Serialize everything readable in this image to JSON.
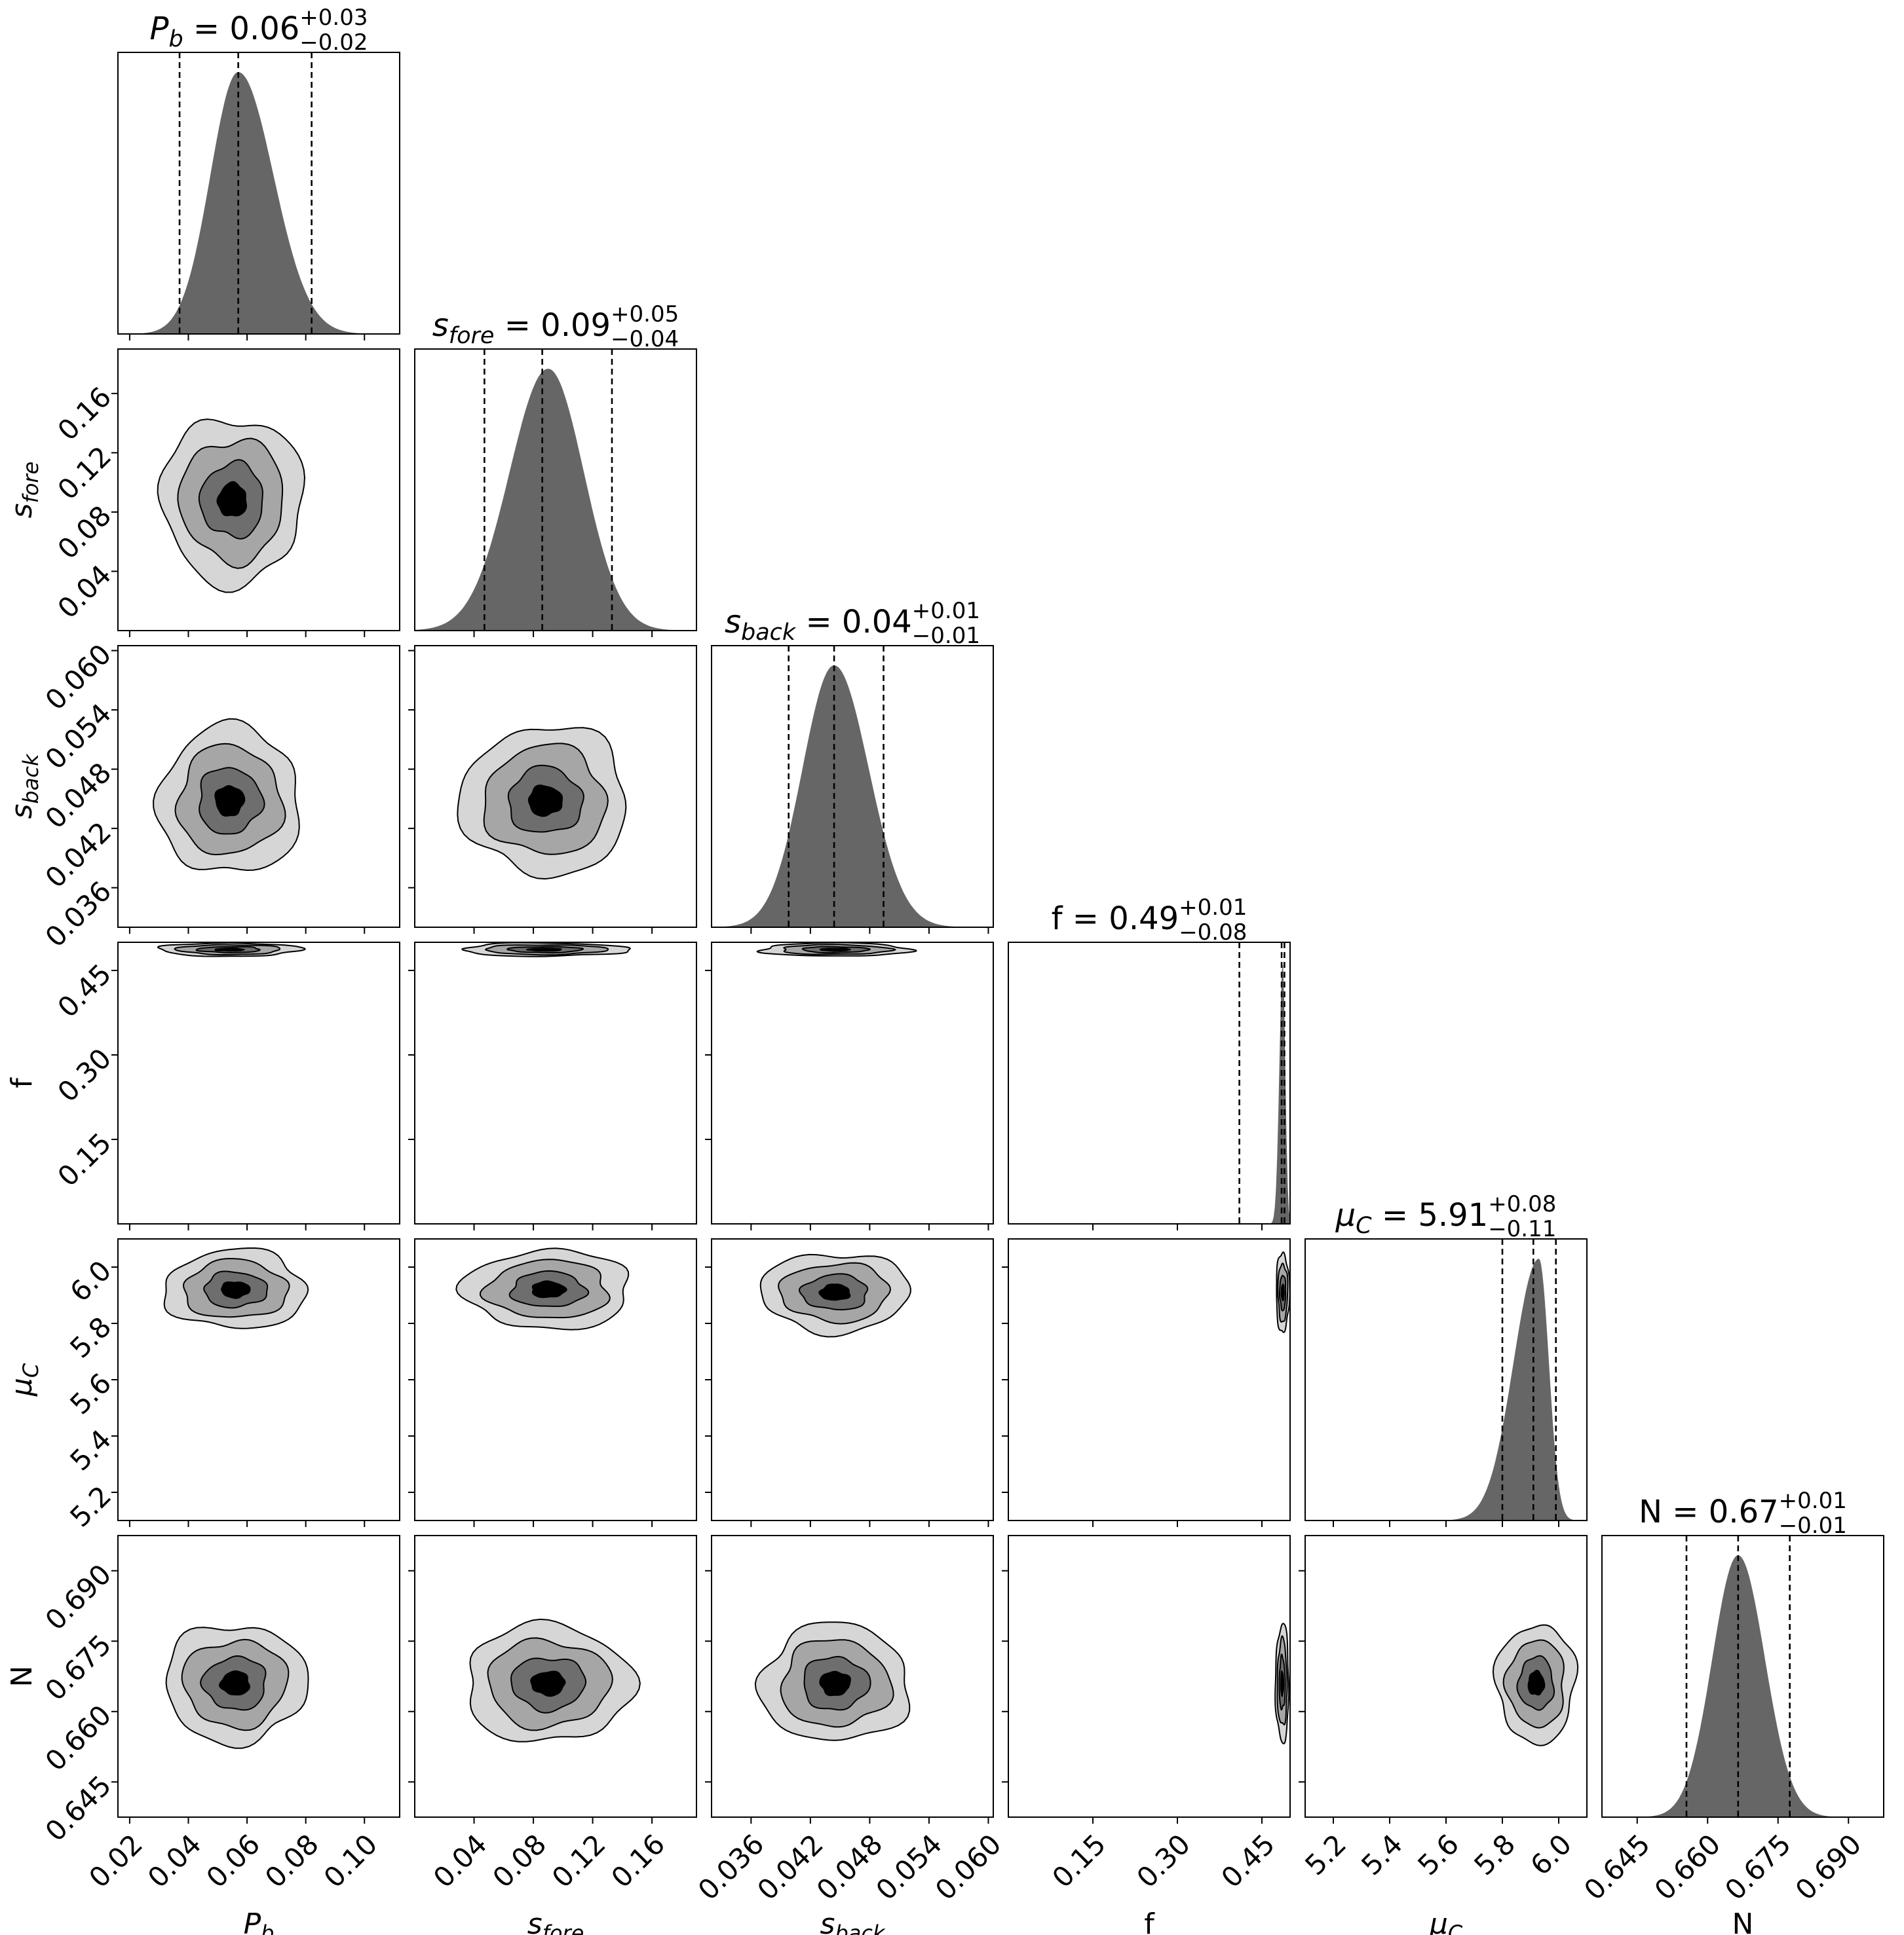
{
  "chart_data": {
    "type": "corner",
    "parameters": [
      {
        "id": "Pb",
        "label_base": "P",
        "label_sub": "b",
        "label_italic": true,
        "median": "0.06",
        "plus": "+0.03",
        "minus": "−0.02",
        "axis_ticks": [
          "0.02",
          "0.04",
          "0.06",
          "0.08",
          "0.10"
        ],
        "tick_values": [
          0.02,
          0.04,
          0.06,
          0.08,
          0.1
        ],
        "range": [
          0.016,
          0.112
        ],
        "peak": 0.057,
        "sigma_left": 0.0095,
        "sigma_right": 0.012,
        "quantiles": [
          0.037,
          0.057,
          0.082
        ]
      },
      {
        "id": "sfore",
        "label_base": "s",
        "label_sub": "fore",
        "label_italic": true,
        "median": "0.09",
        "plus": "+0.05",
        "minus": "−0.04",
        "axis_ticks": [
          "0.04",
          "0.08",
          "0.12",
          "0.16"
        ],
        "tick_values": [
          0.04,
          0.08,
          0.12,
          0.16
        ],
        "range": [
          0.0,
          0.19
        ],
        "peak": 0.09,
        "sigma_left": 0.026,
        "sigma_right": 0.024,
        "quantiles": [
          0.047,
          0.086,
          0.133
        ]
      },
      {
        "id": "sback",
        "label_base": "s",
        "label_sub": "back",
        "label_italic": true,
        "median": "0.04",
        "plus": "+0.01",
        "minus": "−0.01",
        "axis_ticks": [
          "0.036",
          "0.042",
          "0.048",
          "0.054",
          "0.060"
        ],
        "tick_values": [
          0.036,
          0.042,
          0.048,
          0.054,
          0.06
        ],
        "range": [
          0.032,
          0.0605
        ],
        "peak": 0.0444,
        "sigma_left": 0.0032,
        "sigma_right": 0.0035,
        "quantiles": [
          0.0398,
          0.0444,
          0.0494
        ]
      },
      {
        "id": "f",
        "label_base": "f",
        "label_sub": "",
        "label_italic": false,
        "median": "0.49",
        "plus": "+0.01",
        "minus": "−0.08",
        "axis_ticks": [
          "0.15",
          "0.30",
          "0.45"
        ],
        "tick_values": [
          0.15,
          0.3,
          0.45
        ],
        "range": [
          0.0,
          0.5
        ],
        "peak": 0.487,
        "sigma_left": 0.006,
        "sigma_right": 0.0045,
        "quantiles": [
          0.41,
          0.485,
          0.49
        ]
      },
      {
        "id": "muC",
        "label_base": "μ",
        "label_sub": "C",
        "label_italic": true,
        "median": "5.91",
        "plus": "+0.08",
        "minus": "−0.11",
        "axis_ticks": [
          "5.2",
          "5.4",
          "5.6",
          "5.8",
          "6.0"
        ],
        "tick_values": [
          5.2,
          5.4,
          5.6,
          5.8,
          6.0
        ],
        "range": [
          5.1,
          6.1
        ],
        "peak": 5.93,
        "sigma_left": 0.09,
        "sigma_right": 0.035,
        "quantiles": [
          5.8,
          5.91,
          5.99
        ]
      },
      {
        "id": "N",
        "label_base": "N",
        "label_sub": "",
        "label_italic": false,
        "median": "0.67",
        "plus": "+0.01",
        "minus": "−0.01",
        "axis_ticks": [
          "0.645",
          "0.660",
          "0.675",
          "0.690"
        ],
        "tick_values": [
          0.645,
          0.66,
          0.675,
          0.69
        ],
        "range": [
          0.6375,
          0.6975
        ],
        "peak": 0.6665,
        "sigma_left": 0.0055,
        "sigma_right": 0.0057,
        "quantiles": [
          0.6555,
          0.6665,
          0.6775
        ]
      }
    ],
    "contour_centers": {
      "1,0": [
        0.055,
        0.088
      ],
      "2,0": [
        0.054,
        0.0448
      ],
      "2,1": [
        0.088,
        0.0448
      ],
      "3,0": [
        0.054,
        0.487
      ],
      "3,1": [
        0.088,
        0.487
      ],
      "3,2": [
        0.0445,
        0.487
      ],
      "4,0": [
        0.056,
        5.92
      ],
      "4,1": [
        0.09,
        5.92
      ],
      "4,2": [
        0.0445,
        5.91
      ],
      "4,3": [
        0.487,
        5.91
      ],
      "5,0": [
        0.056,
        0.666
      ],
      "5,1": [
        0.09,
        0.666
      ],
      "5,2": [
        0.0445,
        0.666
      ],
      "5,3": [
        0.486,
        0.666
      ],
      "5,4": [
        5.92,
        0.666
      ]
    },
    "contour_levels": 4,
    "contour_fills": [
      "#d6d6d6",
      "#a6a6a6",
      "#6e6e6e",
      "#000000"
    ],
    "hist_color": "#666666"
  }
}
